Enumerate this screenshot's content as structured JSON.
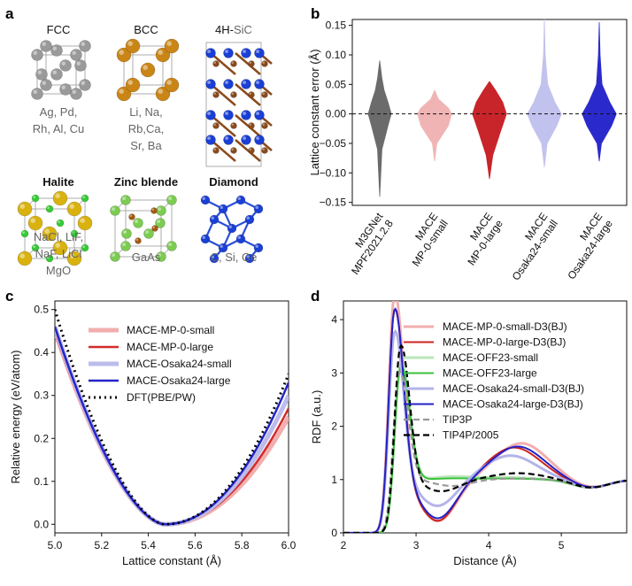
{
  "panels": {
    "a": "a",
    "b": "b",
    "c": "c",
    "d": "d"
  },
  "structures": [
    {
      "id": "fcc",
      "title": "FCC",
      "elements": [
        "Ag, Pd,",
        "Rh, Al, Cu"
      ],
      "atom_colors": [
        "#9a9a9a"
      ]
    },
    {
      "id": "bcc",
      "title": "BCC",
      "elements": [
        "Li, Na,",
        "Rb,Ca,",
        "Sr, Ba"
      ],
      "atom_colors": [
        "#c98516"
      ]
    },
    {
      "id": "sic",
      "title_prefix": "4H-",
      "title_suffix": "SiC",
      "elements": [],
      "atom_colors": [
        "#1a3fd6",
        "#8a4a1c"
      ]
    },
    {
      "id": "halite",
      "title": "Halite",
      "elements": [
        "NaCl, LiF,",
        "NaF, LiCl",
        "MgO"
      ],
      "atom_colors": [
        "#d9b20f",
        "#33cc33"
      ]
    },
    {
      "id": "zincblende",
      "title": "Zinc blende",
      "elements": [
        "GaAs"
      ],
      "atom_colors": [
        "#7dcc52",
        "#a45a12"
      ]
    },
    {
      "id": "diamond",
      "title": "Diamond",
      "elements": [
        "C, Si, Ge"
      ],
      "atom_colors": [
        "#1a3fd6"
      ]
    }
  ],
  "chart_data": [
    {
      "id": "b",
      "type": "violin",
      "ylabel": "Lattice constant error (Å)",
      "ylim": [
        -0.155,
        0.16
      ],
      "yticks": [
        -0.15,
        -0.1,
        -0.05,
        0.0,
        0.05,
        0.1,
        0.15
      ],
      "ytick_labels": [
        "−0.15",
        "−0.10",
        "−0.05",
        "0.00",
        "0.05",
        "0.10",
        "0.15"
      ],
      "reference_line": 0.0,
      "categories": [
        {
          "lines": [
            "M3GNet",
            "MPF2021.2.8"
          ],
          "color": "#6b6b6b",
          "min": -0.14,
          "max": 0.09,
          "half_width_at": [
            [
              -0.14,
              0
            ],
            [
              -0.11,
              0.03
            ],
            [
              -0.06,
              0.08
            ],
            [
              -0.02,
              0.3
            ],
            [
              0,
              0.42
            ],
            [
              0.02,
              0.3
            ],
            [
              0.04,
              0.16
            ],
            [
              0.06,
              0.08
            ],
            [
              0.09,
              0
            ]
          ]
        },
        {
          "lines": [
            "MACE",
            "MP-0-small"
          ],
          "color": "#f0b4b4",
          "min": -0.08,
          "max": 0.04,
          "half_width_at": [
            [
              -0.08,
              0
            ],
            [
              -0.05,
              0.08
            ],
            [
              -0.02,
              0.5
            ],
            [
              0,
              0.62
            ],
            [
              0.01,
              0.5
            ],
            [
              0.025,
              0.14
            ],
            [
              0.04,
              0
            ]
          ]
        },
        {
          "lines": [
            "MACE",
            "MP-0-large"
          ],
          "color": "#c8252a",
          "min": -0.11,
          "max": 0.055,
          "half_width_at": [
            [
              -0.11,
              0
            ],
            [
              -0.07,
              0.12
            ],
            [
              -0.03,
              0.4
            ],
            [
              0,
              0.62
            ],
            [
              0.02,
              0.48
            ],
            [
              0.04,
              0.22
            ],
            [
              0.055,
              0
            ]
          ]
        },
        {
          "lines": [
            "MACE",
            "Osaka24-small"
          ],
          "color": "#c2c2ee",
          "min": -0.09,
          "max": 0.16,
          "half_width_at": [
            [
              -0.09,
              0
            ],
            [
              -0.05,
              0.1
            ],
            [
              -0.02,
              0.45
            ],
            [
              0,
              0.62
            ],
            [
              0.02,
              0.38
            ],
            [
              0.05,
              0.12
            ],
            [
              0.1,
              0.03
            ],
            [
              0.16,
              0
            ]
          ]
        },
        {
          "lines": [
            "MACE",
            "Osaka24-large"
          ],
          "color": "#2a2acc",
          "min": -0.08,
          "max": 0.155,
          "half_width_at": [
            [
              -0.08,
              0
            ],
            [
              -0.05,
              0.08
            ],
            [
              -0.02,
              0.45
            ],
            [
              0,
              0.62
            ],
            [
              0.02,
              0.38
            ],
            [
              0.05,
              0.1
            ],
            [
              0.1,
              0.03
            ],
            [
              0.155,
              0
            ]
          ]
        }
      ]
    },
    {
      "id": "c",
      "type": "line",
      "xlabel": "Lattice constant (Å)",
      "ylabel": "Relative energy (eV/atom)",
      "xlim": [
        5.0,
        6.0
      ],
      "ylim": [
        -0.02,
        0.52
      ],
      "xticks": [
        5.0,
        5.2,
        5.4,
        5.6,
        5.8,
        6.0
      ],
      "xtick_labels": [
        "5.0",
        "5.2",
        "5.4",
        "5.6",
        "5.8",
        "6.0"
      ],
      "yticks": [
        0.0,
        0.1,
        0.2,
        0.3,
        0.4,
        0.5
      ],
      "ytick_labels": [
        "0.0",
        "0.1",
        "0.2",
        "0.3",
        "0.4",
        "0.5"
      ],
      "x0": 5.47,
      "series": [
        {
          "name": "MACE-MP-0-small",
          "color": "#f2aeae",
          "dash": "",
          "width": 5,
          "left": 0.45,
          "right": 0.25
        },
        {
          "name": "MACE-MP-0-large",
          "color": "#d42a2a",
          "dash": "",
          "width": 2.5,
          "left": 0.45,
          "right": 0.27
        },
        {
          "name": "MACE-Osaka24-small",
          "color": "#bcbcec",
          "dash": "",
          "width": 5,
          "left": 0.46,
          "right": 0.3
        },
        {
          "name": "MACE-Osaka24-large",
          "color": "#2424c8",
          "dash": "",
          "width": 2.5,
          "left": 0.46,
          "right": 0.33
        },
        {
          "name": "DFT(PBE/PW)",
          "color": "#000000",
          "dash": "2,4",
          "width": 3,
          "left": 0.5,
          "right": 0.35
        }
      ]
    },
    {
      "id": "d",
      "type": "line",
      "xlabel": "Distance (Å)",
      "ylabel": "RDF (a.u.)",
      "xlim": [
        2.0,
        5.9
      ],
      "ylim": [
        0.0,
        4.35
      ],
      "xticks": [
        2,
        3,
        4,
        5
      ],
      "xtick_labels": [
        "2",
        "3",
        "4",
        "5"
      ],
      "yticks": [
        0,
        1,
        2,
        3,
        4
      ],
      "ytick_labels": [
        "0",
        "1",
        "2",
        "3",
        "4"
      ],
      "series": [
        {
          "name": "MACE-MP-0-small-D3(BJ)",
          "color": "#f2aeae",
          "dash": "",
          "width": 3,
          "peak_x": 2.7,
          "peak_h": 4.2,
          "min_x": 3.3,
          "min_v": 0.22,
          "p2_x": 4.45,
          "p2_h": 1.68
        },
        {
          "name": "MACE-MP-0-large-D3(BJ)",
          "color": "#cc2222",
          "dash": "",
          "width": 2,
          "peak_x": 2.7,
          "peak_h": 3.92,
          "min_x": 3.3,
          "min_v": 0.22,
          "p2_x": 4.35,
          "p2_h": 1.6
        },
        {
          "name": "MACE-OFF23-small",
          "color": "#b8e6b8",
          "dash": "",
          "width": 3,
          "peak_x": 2.78,
          "peak_h": 2.85,
          "min_x": 3.5,
          "min_v": 1.05,
          "p2_x": 4.2,
          "p2_h": 1.04
        },
        {
          "name": "MACE-OFF23-large",
          "color": "#3cc23c",
          "dash": "",
          "width": 2,
          "peak_x": 2.78,
          "peak_h": 2.8,
          "min_x": 3.5,
          "min_v": 1.02,
          "p2_x": 4.2,
          "p2_h": 1.02
        },
        {
          "name": "MACE-Osaka24-small-D3(BJ)",
          "color": "#b4b4ea",
          "dash": "",
          "width": 3,
          "peak_x": 2.7,
          "peak_h": 3.5,
          "min_x": 3.3,
          "min_v": 0.5,
          "p2_x": 4.3,
          "p2_h": 1.45
        },
        {
          "name": "MACE-Osaka24-large-D3(BJ)",
          "color": "#2222c4",
          "dash": "",
          "width": 2,
          "peak_x": 2.7,
          "peak_h": 3.93,
          "min_x": 3.3,
          "min_v": 0.27,
          "p2_x": 4.4,
          "p2_h": 1.62
        },
        {
          "name": "TIP3P",
          "color": "#999999",
          "dash": "7,4",
          "width": 2.2,
          "peak_x": 2.76,
          "peak_h": 2.7,
          "min_x": 3.5,
          "min_v": 0.88,
          "p2_x": 4.4,
          "p2_h": 1.02
        },
        {
          "name": "TIP4P/2005",
          "color": "#000000",
          "dash": "7,4",
          "width": 2.2,
          "peak_x": 2.78,
          "peak_h": 3.2,
          "min_x": 3.35,
          "min_v": 0.78,
          "p2_x": 4.4,
          "p2_h": 1.12
        }
      ]
    }
  ]
}
